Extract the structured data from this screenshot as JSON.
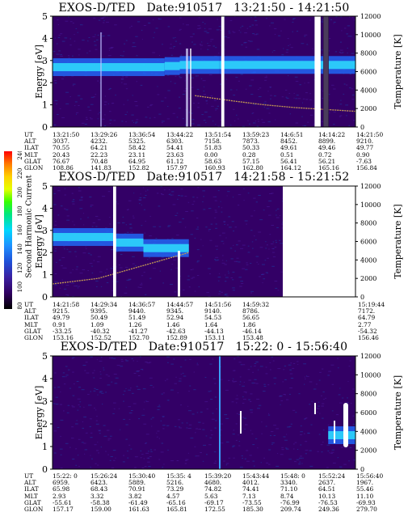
{
  "colors": {
    "plot_bg": "#330066",
    "band": "#1f6dff",
    "band_core": "#2ee6ff",
    "trace": "#c59b52",
    "gap": "#ffffff"
  },
  "colorbar": {
    "label": "Second Harmonic Current",
    "ticks": [
      "240",
      "220",
      "200",
      "180",
      "160",
      "140",
      "120",
      "100",
      "80"
    ]
  },
  "panels": [
    {
      "title": "EXOS-D/TED   Date:910517   13:21:50 - 14:21:50",
      "ylabel": "Energy [eV]",
      "y2label": "Temperature [K]",
      "yticks": [
        "5",
        "4",
        "3",
        "2",
        "1",
        "0"
      ],
      "y2ticks": [
        "12000",
        "10000",
        "8000",
        "6000",
        "4000",
        "2000",
        "0"
      ],
      "ephemeris_labels": [
        "UT",
        "ALT",
        "ILAT",
        "MLT",
        "GLAT",
        "GLON"
      ],
      "ephemeris": [
        [
          "13:21:50",
          "3037.",
          "70.55",
          "20.43",
          "76.67",
          "108.86"
        ],
        [
          "13:29:26",
          "4232.",
          "64.21",
          "22.23",
          "70.48",
          "141.83"
        ],
        [
          "13:36:54",
          "5325.",
          "58.42",
          "23.11",
          "64.95",
          "152.82"
        ],
        [
          "13:44:22",
          "6303.",
          "54.41",
          "23.63",
          "61.12",
          "157.97"
        ],
        [
          "13:51:54",
          "7158.",
          "51.83",
          "0.00",
          "58.63",
          "160.93"
        ],
        [
          "13:59:23",
          "7873.",
          "50.33",
          "0.28",
          "57.15",
          "162.80"
        ],
        [
          "14:6:51",
          "8452.",
          "49.61",
          "0.51",
          "56.41",
          "164.12"
        ],
        [
          "14:14:22",
          "8899.",
          "49.46",
          "0.72",
          "56.21",
          "165.16"
        ],
        [
          "14:21:50",
          "9210.",
          "49.77",
          "0.90",
          "-7.63",
          "156.84"
        ]
      ]
    },
    {
      "title": "EXOS-D/TED   Date:910517   14:21:58 - 15:21:52",
      "ylabel": "Energy [eV]",
      "y2label": "Temperature [K]",
      "yticks": [
        "5",
        "4",
        "3",
        "2",
        "1",
        "0"
      ],
      "y2ticks": [
        "12000",
        "10000",
        "8000",
        "6000",
        "4000",
        "2000",
        "0"
      ],
      "ephemeris_labels": [
        "UT",
        "ALT",
        "ILAT",
        "MLT",
        "GLAT",
        "GLON"
      ],
      "ephemeris": [
        [
          "14:21:58",
          "9215.",
          "49.79",
          "0.91",
          "-33.25",
          "153.16"
        ],
        [
          "14:29:34",
          "9395.",
          "50.49",
          "1.09",
          "-40.32",
          "152.52"
        ],
        [
          "14:36:57",
          "9440.",
          "51.49",
          "1.26",
          "-41.27",
          "152.70"
        ],
        [
          "14:44:57",
          "9345.",
          "52.94",
          "1.46",
          "-42.63",
          "152.89"
        ],
        [
          "14:51:56",
          "9140.",
          "54.53",
          "1.64",
          "-44.13",
          "153.11"
        ],
        [
          "14:59:32",
          "8786.",
          "56.65",
          "1.86",
          "-46.14",
          "153.48"
        ],
        [
          "15:19:44",
          "7172.",
          "64.79",
          "2.77",
          "-54.32",
          "156.46"
        ]
      ]
    },
    {
      "title": "EXOS-D/TED   Date:910517   15:22: 0 - 15:56:40",
      "ylabel": "Energy [eV]",
      "y2label": "Temperature [K]",
      "yticks": [
        "5",
        "4",
        "3",
        "2",
        "1",
        "0"
      ],
      "y2ticks": [
        "12000",
        "10000",
        "8000",
        "6000",
        "4000",
        "2000",
        "0"
      ],
      "ephemeris_labels": [
        "UT",
        "ALT",
        "ILAT",
        "MLT",
        "GLAT",
        "GLON"
      ],
      "ephemeris": [
        [
          "15:22: 0",
          "6959.",
          "65.98",
          "2.93",
          "-55.61",
          "157.17"
        ],
        [
          "15:26:24",
          "6423.",
          "68.43",
          "3.32",
          "-58.38",
          "159.00"
        ],
        [
          "15:30:40",
          "5889.",
          "70.91",
          "3.82",
          "-61.49",
          "161.63"
        ],
        [
          "15:35: 4",
          "5216.",
          "73.29",
          "4.57",
          "-65.16",
          "165.81"
        ],
        [
          "15:39:20",
          "4680.",
          "74.82",
          "5.63",
          "-69.17",
          "172.55"
        ],
        [
          "15:43:44",
          "4012.",
          "74.41",
          "7.13",
          "-73.55",
          "185.30"
        ],
        [
          "15:48: 0",
          "3340.",
          "71.10",
          "8.74",
          "-76.99",
          "209.74"
        ],
        [
          "15:52:24",
          "2637.",
          "64.51",
          "10.13",
          "-76.53",
          "249.36"
        ],
        [
          "15:56:40",
          "1967.",
          "55.46",
          "11.10",
          "-69.93",
          "279.70"
        ]
      ]
    }
  ],
  "chart_data": [
    {
      "type": "heatmap",
      "title": "EXOS-D/TED   Date:910517   13:21:50 - 14:21:50",
      "xlabel": "UT",
      "ylabel": "Energy [eV]",
      "y2label": "Temperature [K]",
      "ylim": [
        0,
        5
      ],
      "y2lim": [
        0,
        12000
      ],
      "colorbar": {
        "label": "Second Harmonic Current",
        "range": [
          80,
          240
        ]
      },
      "x_ticks": [
        "13:21:50",
        "13:29:26",
        "13:36:54",
        "13:44:22",
        "13:51:54",
        "13:59:23",
        "14:6:51",
        "14:14:22",
        "14:21:50"
      ],
      "band": {
        "x": [
          0.0,
          0.37,
          0.42,
          0.55,
          0.8,
          1.0
        ],
        "energy_center_eV": [
          2.7,
          2.7,
          2.8,
          2.8,
          2.8,
          2.8
        ]
      },
      "temperature_trace": {
        "x": [
          0.47,
          0.6,
          0.7,
          0.8,
          0.9,
          1.0
        ],
        "temperature_K": [
          3400,
          2800,
          2400,
          2100,
          1900,
          1700
        ]
      },
      "data_gaps": [
        [
          0.557,
          0.567
        ],
        [
          0.865,
          0.885
        ],
        [
          0.895,
          0.91
        ]
      ]
    },
    {
      "type": "heatmap",
      "title": "EXOS-D/TED   Date:910517   14:21:58 - 15:21:52",
      "xlabel": "UT",
      "ylabel": "Energy [eV]",
      "y2label": "Temperature [K]",
      "ylim": [
        0,
        5
      ],
      "y2lim": [
        0,
        12000
      ],
      "colorbar": {
        "label": "Second Harmonic Current",
        "range": [
          80,
          240
        ]
      },
      "x_ticks": [
        "14:21:58",
        "14:29:34",
        "14:36:57",
        "14:44:57",
        "14:51:56",
        "14:59:32",
        "15:19:44"
      ],
      "band": {
        "x": [
          0.0,
          0.2,
          0.3,
          0.45
        ],
        "energy_center_eV": [
          2.8,
          2.6,
          2.3,
          2.1
        ]
      },
      "temperature_trace": {
        "x": [
          0.0,
          0.15,
          0.3,
          0.45
        ],
        "temperature_K": [
          1400,
          2000,
          3400,
          4800
        ]
      },
      "data_gaps": [
        [
          0.2,
          0.21
        ],
        [
          0.76,
          1.0
        ]
      ]
    },
    {
      "type": "heatmap",
      "title": "EXOS-D/TED   Date:910517   15:22: 0 - 15:56:40",
      "xlabel": "UT",
      "ylabel": "Energy [eV]",
      "y2label": "Temperature [K]",
      "ylim": [
        0,
        5
      ],
      "y2lim": [
        0,
        12000
      ],
      "colorbar": {
        "label": "Second Harmonic Current",
        "range": [
          80,
          240
        ]
      },
      "x_ticks": [
        "15:22: 0",
        "15:26:24",
        "15:30:40",
        "15:35: 4",
        "15:39:20",
        "15:43:44",
        "15:48: 0",
        "15:52:24",
        "15:56:40"
      ],
      "band": {
        "x": [
          0.91,
          1.0
        ],
        "energy_center_eV": [
          1.5,
          1.5
        ]
      },
      "temperature_trace": {
        "x": [],
        "temperature_K": []
      },
      "data_gaps": []
    }
  ]
}
